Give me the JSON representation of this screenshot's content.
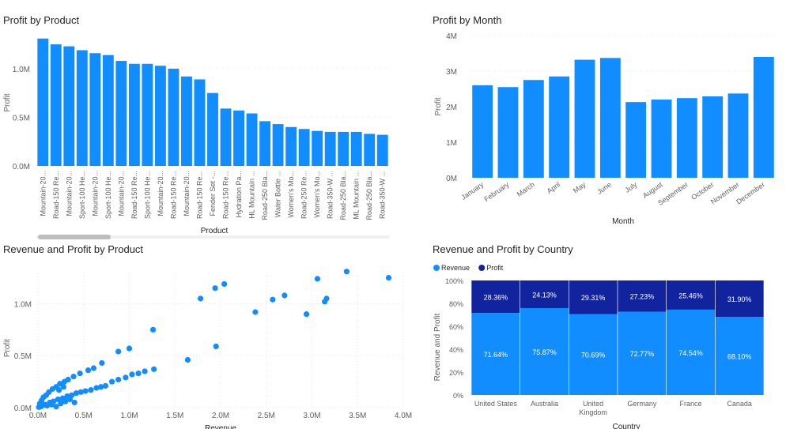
{
  "colors": {
    "bar": "#118DFF",
    "profit": "#12239E",
    "grid": "#e6e6e6",
    "axis_text": "#605E5C"
  },
  "chart_data": [
    {
      "id": "profit_by_product",
      "type": "bar",
      "title": "Profit by Product",
      "xlabel": "Product",
      "ylabel": "Profit",
      "ylim": [
        0,
        1300000
      ],
      "yticks": [
        0,
        500000,
        1000000
      ],
      "ytick_labels": [
        "0.0M",
        "0.5M",
        "1.0M"
      ],
      "categories": [
        "Mountain-20...",
        "Road-150 Re...",
        "Mountain-20...",
        "Sport-100 He...",
        "Mountain-20...",
        "Sport-100 He...",
        "Mountain-20...",
        "Road-150 Re...",
        "Sport-100 He...",
        "Mountain-20...",
        "Road-150 Re...",
        "Mountain-20...",
        "Road-150 Re...",
        "Fender Set -...",
        "Road-150 Re...",
        "Hydration Pa...",
        "HL Mountain ...",
        "Road-250 Bla...",
        "Water Bottle ...",
        "Women's Mo...",
        "Road-250 Re...",
        "Women's Mo...",
        "Road-350-W ...",
        "Road-250 Bla...",
        "ML Mountain ...",
        "Road-250 Bla...",
        "Road-350-W ..."
      ],
      "values": [
        1310000,
        1250000,
        1230000,
        1190000,
        1160000,
        1140000,
        1080000,
        1050000,
        1050000,
        1030000,
        1000000,
        920000,
        890000,
        750000,
        590000,
        570000,
        540000,
        460000,
        430000,
        400000,
        380000,
        360000,
        350000,
        350000,
        350000,
        330000,
        320000
      ],
      "scrollbar": true
    },
    {
      "id": "profit_by_month",
      "type": "bar",
      "title": "Profit by Month",
      "xlabel": "Month",
      "ylabel": "Profit",
      "ylim": [
        0,
        4000000
      ],
      "yticks": [
        0,
        1000000,
        2000000,
        3000000,
        4000000
      ],
      "ytick_labels": [
        "0M",
        "1M",
        "2M",
        "3M",
        "4M"
      ],
      "categories": [
        "January",
        "February",
        "March",
        "April",
        "May",
        "June",
        "July",
        "August",
        "September",
        "October",
        "November",
        "December"
      ],
      "values": [
        2600000,
        2550000,
        2750000,
        2850000,
        3320000,
        3370000,
        2130000,
        2200000,
        2240000,
        2290000,
        2370000,
        3400000
      ]
    },
    {
      "id": "revenue_profit_by_product",
      "type": "scatter",
      "title": "Revenue and Profit by Product",
      "xlabel": "Revenue",
      "ylabel": "Profit",
      "xlim": [
        0,
        4000000
      ],
      "ylim": [
        0,
        1300000
      ],
      "xticks": [
        0,
        500000,
        1000000,
        1500000,
        2000000,
        2500000,
        3000000,
        3500000,
        4000000
      ],
      "xtick_labels": [
        "0.0M",
        "0.5M",
        "1.0M",
        "1.5M",
        "2.0M",
        "2.5M",
        "3.0M",
        "3.5M",
        "4.0M"
      ],
      "yticks": [
        0,
        500000,
        1000000
      ],
      "ytick_labels": [
        "0.0M",
        "0.5M",
        "1.0M"
      ],
      "points": [
        [
          3380000,
          1310000
        ],
        [
          3840000,
          1250000
        ],
        [
          3060000,
          1240000
        ],
        [
          2040000,
          1190000
        ],
        [
          1940000,
          1150000
        ],
        [
          1780000,
          1050000
        ],
        [
          2700000,
          1080000
        ],
        [
          2570000,
          1040000
        ],
        [
          3160000,
          1050000
        ],
        [
          3140000,
          1020000
        ],
        [
          2380000,
          920000
        ],
        [
          2940000,
          900000
        ],
        [
          1260000,
          750000
        ],
        [
          1950000,
          590000
        ],
        [
          1000000,
          570000
        ],
        [
          880000,
          540000
        ],
        [
          1640000,
          460000
        ],
        [
          1270000,
          370000
        ],
        [
          1170000,
          350000
        ],
        [
          1100000,
          330000
        ],
        [
          1030000,
          320000
        ],
        [
          960000,
          290000
        ],
        [
          880000,
          270000
        ],
        [
          810000,
          250000
        ],
        [
          740000,
          210000
        ],
        [
          690000,
          200000
        ],
        [
          640000,
          190000
        ],
        [
          580000,
          170000
        ],
        [
          520000,
          160000
        ],
        [
          470000,
          150000
        ],
        [
          420000,
          140000
        ],
        [
          370000,
          120000
        ],
        [
          320000,
          110000
        ],
        [
          270000,
          90000
        ],
        [
          220000,
          80000
        ],
        [
          170000,
          60000
        ],
        [
          130000,
          50000
        ],
        [
          80000,
          30000
        ],
        [
          50000,
          20000
        ],
        [
          30000,
          10000
        ],
        [
          10000,
          5000
        ],
        [
          700000,
          430000
        ],
        [
          610000,
          380000
        ],
        [
          550000,
          360000
        ],
        [
          460000,
          330000
        ],
        [
          390000,
          300000
        ],
        [
          330000,
          270000
        ],
        [
          290000,
          250000
        ],
        [
          240000,
          230000
        ],
        [
          200000,
          200000
        ],
        [
          160000,
          180000
        ],
        [
          120000,
          150000
        ],
        [
          90000,
          120000
        ],
        [
          60000,
          100000
        ],
        [
          40000,
          70000
        ],
        [
          20000,
          40000
        ],
        [
          100000,
          20000
        ],
        [
          150000,
          30000
        ],
        [
          200000,
          10000
        ],
        [
          250000,
          40000
        ],
        [
          300000,
          60000
        ],
        [
          350000,
          80000
        ],
        [
          400000,
          50000
        ],
        [
          280000,
          200000
        ],
        [
          230000,
          170000
        ]
      ]
    },
    {
      "id": "revenue_profit_by_country",
      "type": "bar",
      "stacked": "100%",
      "title": "Revenue and Profit by Country",
      "xlabel": "Country",
      "ylabel": "Revenue and Profit",
      "ylim": [
        0,
        100
      ],
      "yticks": [
        0,
        20,
        40,
        60,
        80,
        100
      ],
      "ytick_labels": [
        "0%",
        "20%",
        "40%",
        "60%",
        "80%",
        "100%"
      ],
      "legend": "top-left",
      "categories": [
        "United States",
        "Australia",
        "United Kingdom",
        "Germany",
        "France",
        "Canada"
      ],
      "category_lines": [
        [
          "United States"
        ],
        [
          "Australia"
        ],
        [
          "United",
          "Kingdom"
        ],
        [
          "Germany"
        ],
        [
          "France"
        ],
        [
          "Canada"
        ]
      ],
      "series": [
        {
          "name": "Revenue",
          "values": [
            71.64,
            75.87,
            70.69,
            72.77,
            74.54,
            68.1
          ],
          "labels": [
            "71.64%",
            "75.87%",
            "70.69%",
            "72.77%",
            "74.54%",
            "68.10%"
          ]
        },
        {
          "name": "Profit",
          "values": [
            28.36,
            24.13,
            29.31,
            27.23,
            25.46,
            31.9
          ],
          "labels": [
            "28.36%",
            "24.13%",
            "29.31%",
            "27.23%",
            "25.46%",
            "31.90%"
          ]
        }
      ]
    }
  ]
}
